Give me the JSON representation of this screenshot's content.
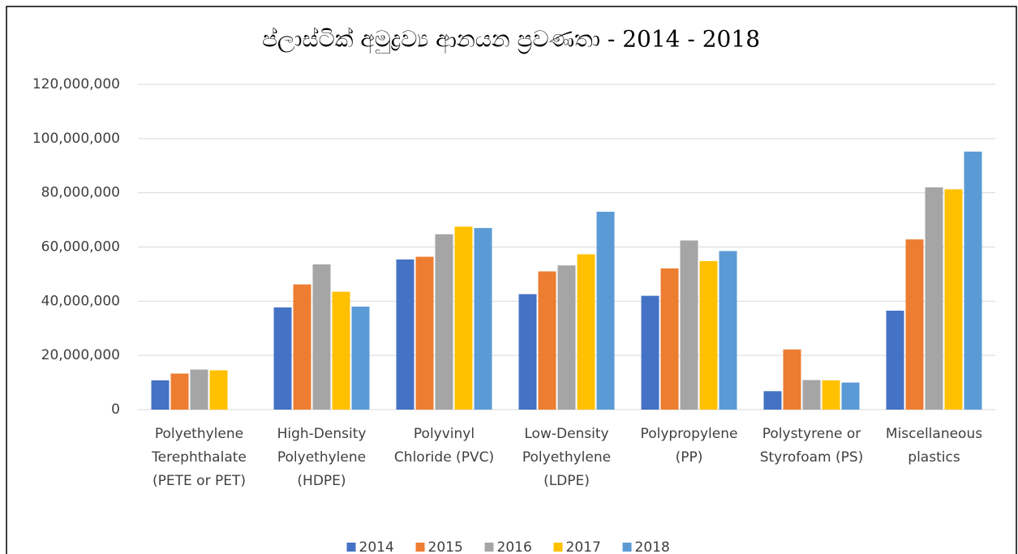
{
  "chart_data": {
    "type": "bar",
    "title": "ප්ලාස්ටික් අමුද්‍රව්‍ය ආනයන ප්‍රවණතා - 2014 - 2018",
    "categories": [
      [
        "Polyethylene",
        "Terephthalate",
        "(PETE or PET)"
      ],
      [
        "High-Density",
        "Polyethylene",
        "(HDPE)"
      ],
      [
        "Polyvinyl",
        "Chloride (PVC)"
      ],
      [
        "Low-Density",
        "Polyethylene",
        "(LDPE)"
      ],
      [
        "Polypropylene",
        "(PP)"
      ],
      [
        "Polystyrene or",
        "Styrofoam (PS)"
      ],
      [
        "Miscellaneous",
        "plastics"
      ]
    ],
    "series": [
      {
        "name": "2014",
        "color": "#4472c4",
        "values": [
          10800000,
          37700000,
          55400000,
          42600000,
          42000000,
          6800000,
          36500000
        ]
      },
      {
        "name": "2015",
        "color": "#ed7d31",
        "values": [
          13300000,
          46200000,
          56400000,
          51000000,
          52100000,
          22200000,
          62800000
        ]
      },
      {
        "name": "2016",
        "color": "#a5a5a5",
        "values": [
          14800000,
          53600000,
          64700000,
          53200000,
          62400000,
          10900000,
          82000000
        ]
      },
      {
        "name": "2017",
        "color": "#ffc000",
        "values": [
          14500000,
          43500000,
          67500000,
          57300000,
          54800000,
          10800000,
          81300000
        ]
      },
      {
        "name": "2018",
        "color": "#5b9bd5",
        "values": [
          null,
          38000000,
          67000000,
          73000000,
          58500000,
          10000000,
          95200000
        ]
      }
    ],
    "ylim": [
      0,
      120000000
    ],
    "yticks": [
      0,
      {
        "value": 20000000,
        "label": "20,000,000"
      },
      {
        "value": 40000000,
        "label": "40,000,000"
      },
      {
        "value": 60000000,
        "label": "60,000,000"
      },
      {
        "value": 80000000,
        "label": "80,000,000"
      },
      {
        "value": 100000000,
        "label": "100,000,000"
      },
      {
        "value": 120000000,
        "label": "120,000,000"
      }
    ],
    "grid": true,
    "legend": "bottom"
  }
}
